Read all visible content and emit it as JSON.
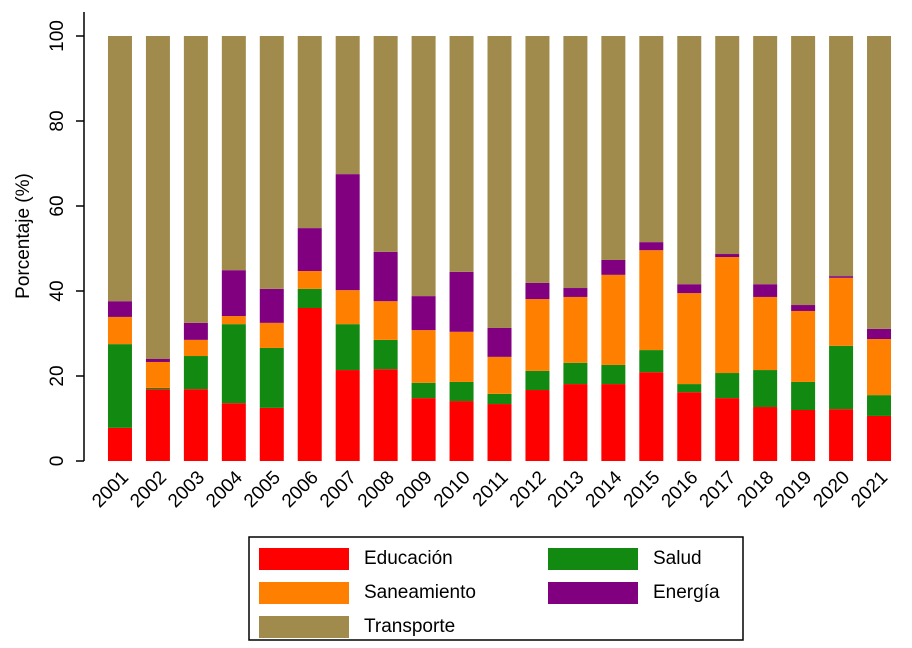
{
  "chart_data": {
    "type": "stacked_bar",
    "y_label": "Porcentaje (%)",
    "categories": [
      "2001",
      "2002",
      "2003",
      "2004",
      "2005",
      "2006",
      "2007",
      "2008",
      "2009",
      "2010",
      "2011",
      "2012",
      "2013",
      "2014",
      "2015",
      "2016",
      "2017",
      "2018",
      "2019",
      "2020",
      "2021"
    ],
    "series": [
      {
        "name": "Educación",
        "color": "#ff0000",
        "values": [
          7.8,
          16.9,
          16.9,
          13.6,
          12.5,
          36.0,
          21.4,
          21.6,
          14.8,
          14.1,
          13.4,
          16.7,
          18.1,
          18.1,
          20.9,
          16.2,
          14.8,
          12.7,
          12.0,
          12.2,
          10.6
        ]
      },
      {
        "name": "Salud",
        "color": "#128a12",
        "values": [
          19.7,
          0.3,
          7.8,
          18.6,
          14.1,
          4.5,
          10.8,
          6.9,
          3.6,
          4.5,
          2.4,
          4.5,
          5.0,
          4.5,
          5.2,
          1.9,
          5.9,
          8.7,
          6.6,
          14.9,
          4.9
        ]
      },
      {
        "name": "Saneamiento",
        "color": "#ff8000",
        "values": [
          6.4,
          6.1,
          3.8,
          1.9,
          5.9,
          4.2,
          8.0,
          9.1,
          12.4,
          11.8,
          8.7,
          16.9,
          15.5,
          21.2,
          23.5,
          21.4,
          27.3,
          17.2,
          16.7,
          16.0,
          13.2
        ]
      },
      {
        "name": "Energía",
        "color": "#800080",
        "values": [
          3.7,
          0.7,
          4.0,
          10.8,
          8.0,
          10.1,
          27.3,
          11.6,
          8.0,
          14.1,
          6.8,
          3.8,
          2.1,
          3.5,
          1.9,
          2.1,
          0.7,
          3.0,
          1.4,
          0.4,
          2.4
        ]
      },
      {
        "name": "Transporte",
        "color": "#a08b4c",
        "values": [
          62.4,
          76.0,
          67.5,
          55.1,
          59.5,
          45.2,
          32.5,
          50.8,
          61.2,
          55.5,
          68.7,
          58.1,
          59.3,
          52.7,
          48.5,
          58.4,
          51.3,
          58.4,
          63.3,
          56.5,
          68.9
        ]
      }
    ],
    "ylim": [
      0,
      105
    ],
    "yticks": [
      0,
      20,
      40,
      60,
      80,
      100
    ],
    "grid": false
  }
}
